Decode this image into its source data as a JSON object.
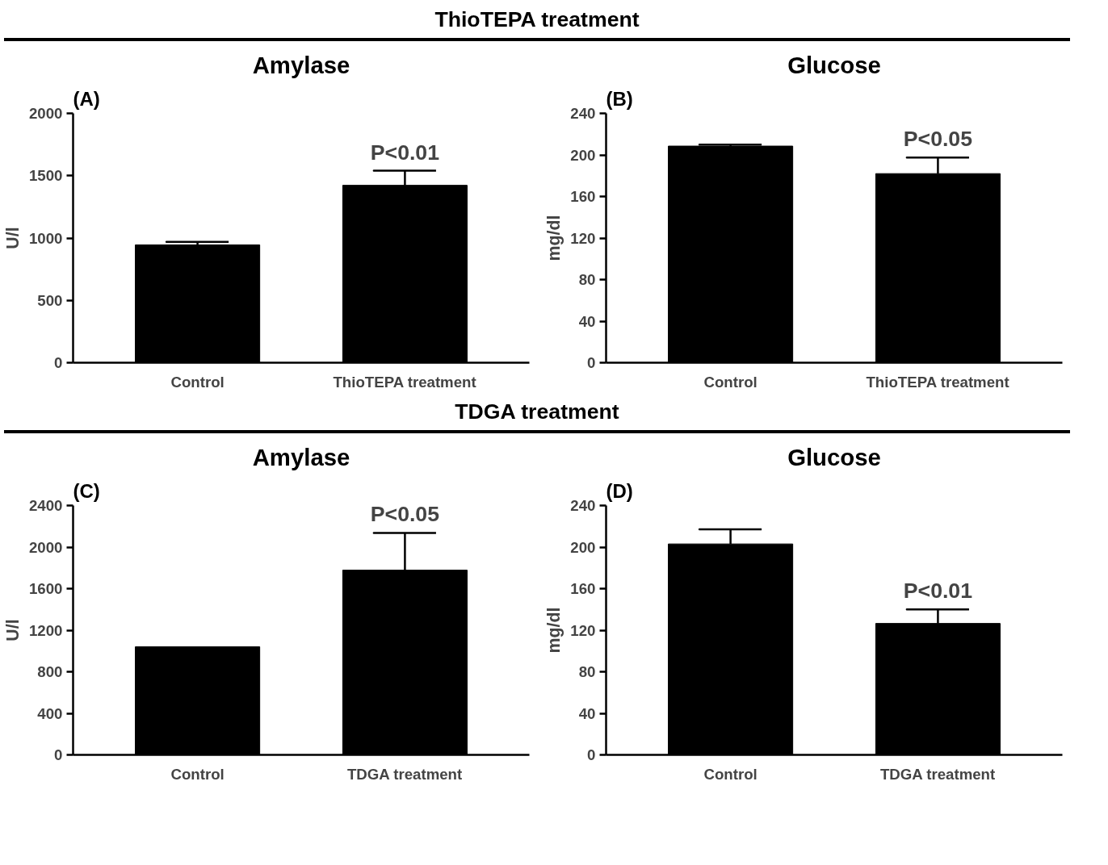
{
  "chart_data": [
    {
      "type": "bar",
      "title": "Amylase",
      "ylabel": "U/l",
      "categories": [
        "Control",
        "ThioTEPA treatment"
      ],
      "values": [
        945,
        1423
      ],
      "errors": [
        [
          945,
          970
        ],
        [
          1423,
          1540
        ]
      ],
      "color": "#000000",
      "ylim": [
        0,
        2000
      ],
      "yticks": [
        0,
        500,
        1000,
        1500,
        2000
      ],
      "grid": false,
      "annotations": [
        "(A)",
        "ThioTEPA treatment",
        {
          "text": "P<0.01",
          "x": "ThioTEPA treatment",
          "y": 1540
        }
      ]
    },
    {
      "type": "bar",
      "title": "Glucose",
      "ylabel": "mg/dl",
      "categories": [
        "Control",
        "ThioTEPA treatment"
      ],
      "values": [
        208.5,
        182
      ],
      "errors": [
        [
          208.5,
          210
        ],
        [
          182,
          197.5
        ]
      ],
      "color": "#000000",
      "ylim": [
        0,
        240
      ],
      "yticks": [
        0,
        40,
        80,
        120,
        160,
        200,
        240
      ],
      "grid": false,
      "annotations": [
        "(B)",
        {
          "text": "P<0.05",
          "x": "ThioTEPA treatment",
          "y": 197.5
        }
      ]
    },
    {
      "type": "bar",
      "title": "Amylase",
      "ylabel": "U/l",
      "categories": [
        "Control",
        "TDGA treatment"
      ],
      "values": [
        1040,
        1778
      ],
      "errors": [
        null,
        [
          1778,
          2136
        ]
      ],
      "color": "#000000",
      "ylim": [
        0,
        2400
      ],
      "yticks": [
        0,
        400,
        800,
        1200,
        1600,
        2000,
        2400
      ],
      "grid": false,
      "annotations": [
        "(C)",
        "TDGA treatment",
        {
          "text": "P<0.05",
          "x": "TDGA treatment",
          "y": 2136
        }
      ]
    },
    {
      "type": "bar",
      "title": "Glucose",
      "ylabel": "mg/dl",
      "categories": [
        "Control",
        "TDGA treatment"
      ],
      "values": [
        203,
        126.5
      ],
      "errors": [
        [
          203,
          217
        ],
        [
          126.5,
          140
        ]
      ],
      "color": "#000000",
      "ylim": [
        0,
        240
      ],
      "yticks": [
        0,
        40,
        80,
        120,
        160,
        200,
        240
      ],
      "grid": false,
      "annotations": [
        "(D)",
        {
          "text": "P<0.01",
          "x": "TDGA treatment",
          "y": 140
        }
      ]
    }
  ]
}
